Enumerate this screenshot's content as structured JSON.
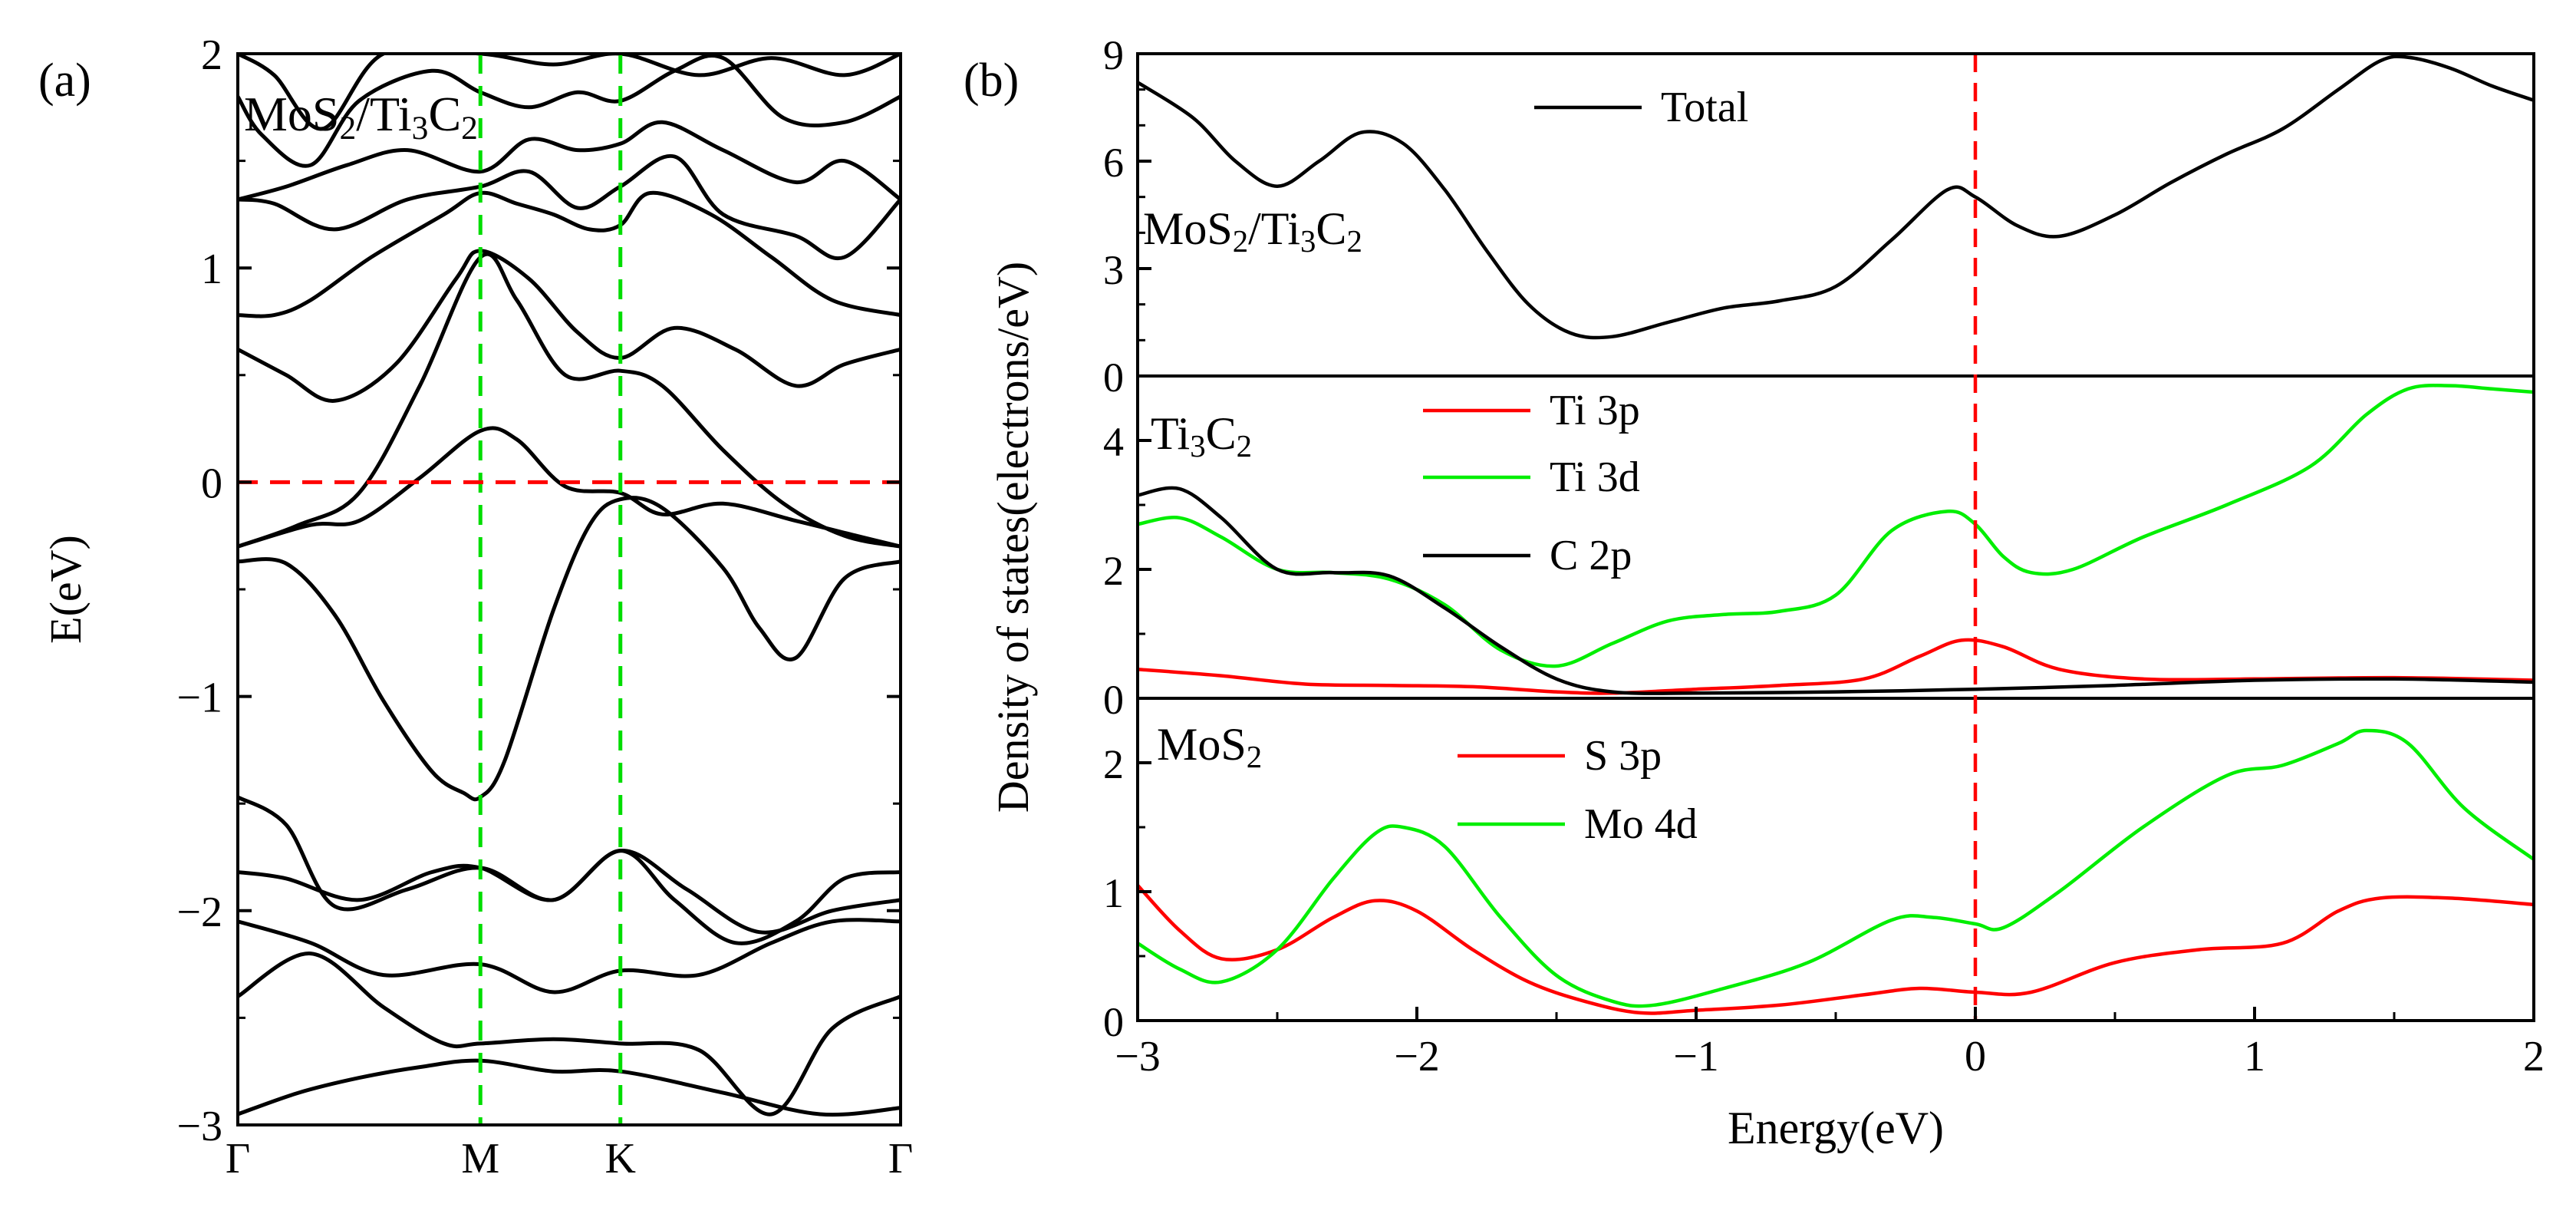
{
  "chart_data": [
    {
      "panel": "(a)",
      "type": "line",
      "subtype": "band_structure",
      "title": "MoS₂/Ti₃C₂",
      "title_parts": [
        "MoS",
        "2",
        "/Ti",
        "3",
        "C",
        "2"
      ],
      "ylabel": "E(eV)",
      "xlabel": "",
      "ylim": [
        -3,
        2
      ],
      "y_ticks": [
        {
          "value": 2,
          "label": "2"
        },
        {
          "value": 1,
          "label": "1"
        },
        {
          "value": 0,
          "label": "0"
        },
        {
          "value": -1,
          "label": "−1"
        },
        {
          "value": -2,
          "label": "−2"
        },
        {
          "value": -3,
          "label": "−3"
        }
      ],
      "k_points": [
        {
          "label": "Γ",
          "k": 0
        },
        {
          "label": "M",
          "k": 1
        },
        {
          "label": "K",
          "k": 1.577
        },
        {
          "label": "Γ",
          "k": 2.732
        }
      ],
      "xlim": [
        0,
        2.732
      ],
      "fermi_level": 0,
      "colors": {
        "bands": "#000000",
        "fermi": "#ff0000",
        "kline": "#00dd00"
      },
      "bands": [
        {
          "k": [
            0,
            0.25,
            0.5,
            0.75,
            1,
            1.3,
            1.577,
            2.0,
            2.4,
            2.732
          ],
          "E": [
            -2.95,
            -2.85,
            -2.78,
            -2.73,
            -2.7,
            -2.75,
            -2.75,
            -2.85,
            -2.95,
            -2.92
          ]
        },
        {
          "k": [
            0,
            0.3,
            0.6,
            0.85,
            1,
            1.3,
            1.577,
            1.9,
            2.2,
            2.45,
            2.732
          ],
          "E": [
            -2.4,
            -2.2,
            -2.45,
            -2.62,
            -2.62,
            -2.6,
            -2.62,
            -2.65,
            -2.95,
            -2.55,
            -2.4
          ]
        },
        {
          "k": [
            0,
            0.3,
            0.6,
            1,
            1.3,
            1.577,
            1.9,
            2.2,
            2.45,
            2.732
          ],
          "E": [
            -2.05,
            -2.15,
            -2.3,
            -2.25,
            -2.38,
            -2.28,
            -2.3,
            -2.15,
            -2.05,
            -2.05
          ]
        },
        {
          "k": [
            0,
            0.2,
            0.5,
            0.8,
            1,
            1.3,
            1.577,
            1.8,
            2.05,
            2.3,
            2.5,
            2.732
          ],
          "E": [
            -1.82,
            -1.85,
            -1.95,
            -1.82,
            -1.8,
            -1.95,
            -1.72,
            -1.95,
            -2.15,
            -2.05,
            -1.85,
            -1.82
          ]
        },
        {
          "k": [
            0,
            0.2,
            0.4,
            0.7,
            1,
            1.3,
            1.577,
            1.85,
            2.15,
            2.45,
            2.732
          ],
          "E": [
            -1.47,
            -1.6,
            -1.98,
            -1.9,
            -1.8,
            -1.95,
            -1.72,
            -1.9,
            -2.1,
            -2.0,
            -1.95
          ]
        },
        {
          "k": [
            0,
            0.2,
            0.4,
            0.6,
            0.8,
            0.93,
            1,
            1.1,
            1.3,
            1.45,
            1.577,
            1.75,
            2.0,
            2.15,
            2.3,
            2.5,
            2.732
          ],
          "E": [
            -0.37,
            -0.38,
            -0.62,
            -1.02,
            -1.35,
            -1.45,
            -1.47,
            -1.3,
            -0.6,
            -0.2,
            -0.08,
            -0.12,
            -0.4,
            -0.68,
            -0.82,
            -0.45,
            -0.37
          ]
        },
        {
          "k": [
            0,
            0.3,
            0.5,
            0.75,
            1,
            1.15,
            1.35,
            1.577,
            1.75,
            2.0,
            2.3,
            2.55,
            2.732
          ],
          "E": [
            -0.3,
            -0.2,
            -0.18,
            0.02,
            0.24,
            0.2,
            -0.02,
            -0.05,
            -0.15,
            -0.1,
            -0.18,
            -0.25,
            -0.3
          ]
        },
        {
          "k": [
            0,
            0.25,
            0.5,
            0.75,
            1,
            1.15,
            1.35,
            1.577,
            1.75,
            2.0,
            2.25,
            2.5,
            2.732
          ],
          "E": [
            -0.3,
            -0.2,
            -0.05,
            0.45,
            1.05,
            0.85,
            0.5,
            0.52,
            0.45,
            0.15,
            -0.1,
            -0.25,
            -0.3
          ]
        },
        {
          "k": [
            0,
            0.2,
            0.4,
            0.65,
            0.9,
            1,
            1.2,
            1.4,
            1.577,
            1.8,
            2.05,
            2.3,
            2.5,
            2.732
          ],
          "E": [
            0.62,
            0.5,
            0.38,
            0.55,
            0.95,
            1.08,
            0.95,
            0.7,
            0.58,
            0.72,
            0.62,
            0.45,
            0.55,
            0.62
          ]
        },
        {
          "k": [
            0,
            0.15,
            0.3,
            0.55,
            0.85,
            1,
            1.15,
            1.3,
            1.45,
            1.577,
            1.7,
            1.95,
            2.2,
            2.45,
            2.732
          ],
          "E": [
            0.78,
            0.78,
            0.85,
            1.05,
            1.25,
            1.35,
            1.3,
            1.25,
            1.18,
            1.2,
            1.35,
            1.25,
            1.05,
            0.85,
            0.78
          ]
        },
        {
          "k": [
            0,
            0.15,
            0.4,
            0.7,
            1,
            1.2,
            1.4,
            1.577,
            1.8,
            2.0,
            2.3,
            2.5,
            2.732
          ],
          "E": [
            1.32,
            1.3,
            1.18,
            1.32,
            1.38,
            1.45,
            1.28,
            1.38,
            1.52,
            1.25,
            1.15,
            1.05,
            1.32
          ]
        },
        {
          "k": [
            0,
            0.2,
            0.45,
            0.7,
            1,
            1.2,
            1.4,
            1.577,
            1.75,
            2.0,
            2.3,
            2.5,
            2.732
          ],
          "E": [
            1.32,
            1.38,
            1.48,
            1.55,
            1.45,
            1.6,
            1.55,
            1.58,
            1.68,
            1.55,
            1.4,
            1.5,
            1.32
          ]
        },
        {
          "k": [
            0,
            0.1,
            0.3,
            0.5,
            0.8,
            1,
            1.2,
            1.4,
            1.577,
            1.8,
            2.0,
            2.25,
            2.5,
            2.732
          ],
          "E": [
            1.8,
            1.62,
            1.48,
            1.78,
            1.92,
            1.82,
            1.75,
            1.82,
            1.78,
            1.92,
            1.98,
            1.7,
            1.68,
            1.8
          ]
        },
        {
          "k": [
            0,
            0.15,
            0.35,
            0.6,
            1,
            1.3,
            1.577,
            1.9,
            2.2,
            2.5,
            2.732
          ],
          "E": [
            2.0,
            1.9,
            1.65,
            2.0,
            2.0,
            1.95,
            2.0,
            1.9,
            1.98,
            1.9,
            2.0
          ]
        }
      ]
    },
    {
      "panel": "(b)",
      "type": "line",
      "subtype": "density_of_states",
      "xlabel": "Energy(eV)",
      "ylabel": "Density of states(electrons/eV)",
      "xlim": [
        -3,
        2
      ],
      "x_ticks": [
        {
          "value": -3,
          "label": "−3"
        },
        {
          "value": -2,
          "label": "−2"
        },
        {
          "value": -1,
          "label": "−1"
        },
        {
          "value": 0,
          "label": "0"
        },
        {
          "value": 1,
          "label": "1"
        },
        {
          "value": 2,
          "label": "2"
        }
      ],
      "fermi_level": 0,
      "subpanels": [
        {
          "label": "MoS₂/Ti₃C₂",
          "label_parts": [
            "MoS",
            "2",
            "/Ti",
            "3",
            "C",
            "2"
          ],
          "ylim": [
            0,
            9
          ],
          "y_ticks": [
            {
              "value": 0,
              "label": "0"
            },
            {
              "value": 3,
              "label": "3"
            },
            {
              "value": 6,
              "label": "6"
            },
            {
              "value": 9,
              "label": "9"
            }
          ],
          "series": [
            {
              "name": "Total",
              "color": "#000000",
              "x": [
                -3.0,
                -2.8,
                -2.65,
                -2.5,
                -2.35,
                -2.2,
                -2.05,
                -1.9,
                -1.75,
                -1.6,
                -1.45,
                -1.3,
                -1.1,
                -0.9,
                -0.7,
                -0.5,
                -0.3,
                -0.1,
                0.0,
                0.15,
                0.3,
                0.5,
                0.7,
                0.9,
                1.1,
                1.3,
                1.45,
                1.55,
                1.7,
                1.85,
                2.0
              ],
              "y": [
                8.2,
                7.2,
                6.0,
                5.3,
                6.0,
                6.8,
                6.5,
                5.2,
                3.5,
                2.0,
                1.2,
                1.1,
                1.5,
                1.9,
                2.1,
                2.5,
                3.8,
                5.2,
                5.0,
                4.2,
                3.9,
                4.5,
                5.4,
                6.2,
                6.9,
                8.0,
                8.8,
                8.9,
                8.6,
                8.1,
                7.7
              ]
            }
          ]
        },
        {
          "label": "Ti₃C₂",
          "label_parts": [
            "Ti",
            "3",
            "C",
            "2"
          ],
          "ylim": [
            0,
            5
          ],
          "y_ticks": [
            {
              "value": 0,
              "label": "0"
            },
            {
              "value": 2,
              "label": "2"
            },
            {
              "value": 4,
              "label": "4"
            }
          ],
          "series": [
            {
              "name": "Ti 3p",
              "color": "#ff0000",
              "x": [
                -3.0,
                -2.7,
                -2.4,
                -2.1,
                -1.8,
                -1.5,
                -1.3,
                -1.0,
                -0.7,
                -0.4,
                -0.2,
                -0.05,
                0.1,
                0.3,
                0.6,
                1.0,
                1.5,
                2.0
              ],
              "y": [
                0.45,
                0.35,
                0.22,
                0.2,
                0.18,
                0.1,
                0.08,
                0.14,
                0.2,
                0.3,
                0.65,
                0.9,
                0.8,
                0.45,
                0.3,
                0.3,
                0.32,
                0.28
              ]
            },
            {
              "name": "Ti 3d",
              "color": "#00ee00",
              "x": [
                -3.0,
                -2.85,
                -2.7,
                -2.5,
                -2.3,
                -2.1,
                -1.9,
                -1.7,
                -1.5,
                -1.3,
                -1.1,
                -0.9,
                -0.7,
                -0.5,
                -0.3,
                -0.1,
                0.0,
                0.1,
                0.2,
                0.35,
                0.6,
                0.9,
                1.2,
                1.4,
                1.55,
                1.7,
                1.85,
                2.0
              ],
              "y": [
                2.7,
                2.8,
                2.5,
                2.0,
                1.95,
                1.85,
                1.45,
                0.75,
                0.5,
                0.85,
                1.2,
                1.3,
                1.35,
                1.6,
                2.6,
                2.9,
                2.7,
                2.2,
                1.95,
                2.0,
                2.5,
                3.0,
                3.6,
                4.4,
                4.8,
                4.85,
                4.8,
                4.75
              ]
            },
            {
              "name": "C 2p",
              "color": "#000000",
              "x": [
                -3.0,
                -2.85,
                -2.7,
                -2.5,
                -2.3,
                -2.1,
                -1.9,
                -1.7,
                -1.5,
                -1.3,
                -1.0,
                -0.5,
                0.0,
                0.5,
                1.0,
                1.5,
                2.0
              ],
              "y": [
                3.15,
                3.25,
                2.8,
                2.0,
                1.95,
                1.9,
                1.4,
                0.8,
                0.3,
                0.1,
                0.08,
                0.1,
                0.14,
                0.2,
                0.28,
                0.3,
                0.25
              ]
            }
          ]
        },
        {
          "label": "MoS₂",
          "label_parts": [
            "MoS",
            "2"
          ],
          "ylim": [
            0,
            2.5
          ],
          "y_ticks": [
            {
              "value": 0,
              "label": "0"
            },
            {
              "value": 1,
              "label": "1"
            },
            {
              "value": 2,
              "label": "2"
            }
          ],
          "series": [
            {
              "name": "S 3p",
              "color": "#ff0000",
              "x": [
                -3.0,
                -2.85,
                -2.7,
                -2.5,
                -2.3,
                -2.15,
                -2.0,
                -1.8,
                -1.6,
                -1.4,
                -1.2,
                -1.0,
                -0.7,
                -0.4,
                -0.2,
                0.0,
                0.2,
                0.5,
                0.8,
                1.1,
                1.3,
                1.45,
                1.7,
                2.0
              ],
              "y": [
                1.05,
                0.7,
                0.48,
                0.55,
                0.8,
                0.93,
                0.85,
                0.55,
                0.3,
                0.15,
                0.06,
                0.08,
                0.12,
                0.2,
                0.25,
                0.22,
                0.22,
                0.45,
                0.55,
                0.6,
                0.85,
                0.95,
                0.95,
                0.9
              ]
            },
            {
              "name": "Mo 4d",
              "color": "#00ee00",
              "x": [
                -3.0,
                -2.85,
                -2.7,
                -2.5,
                -2.3,
                -2.15,
                -2.05,
                -1.9,
                -1.7,
                -1.5,
                -1.3,
                -1.15,
                -0.9,
                -0.6,
                -0.3,
                -0.15,
                0.0,
                0.1,
                0.3,
                0.6,
                0.9,
                1.1,
                1.3,
                1.4,
                1.55,
                1.75,
                2.0
              ],
              "y": [
                0.6,
                0.4,
                0.3,
                0.55,
                1.1,
                1.45,
                1.5,
                1.35,
                0.8,
                0.35,
                0.15,
                0.12,
                0.25,
                0.45,
                0.78,
                0.8,
                0.75,
                0.72,
                1.0,
                1.5,
                1.9,
                1.98,
                2.15,
                2.25,
                2.15,
                1.65,
                1.25
              ]
            }
          ]
        }
      ]
    }
  ]
}
